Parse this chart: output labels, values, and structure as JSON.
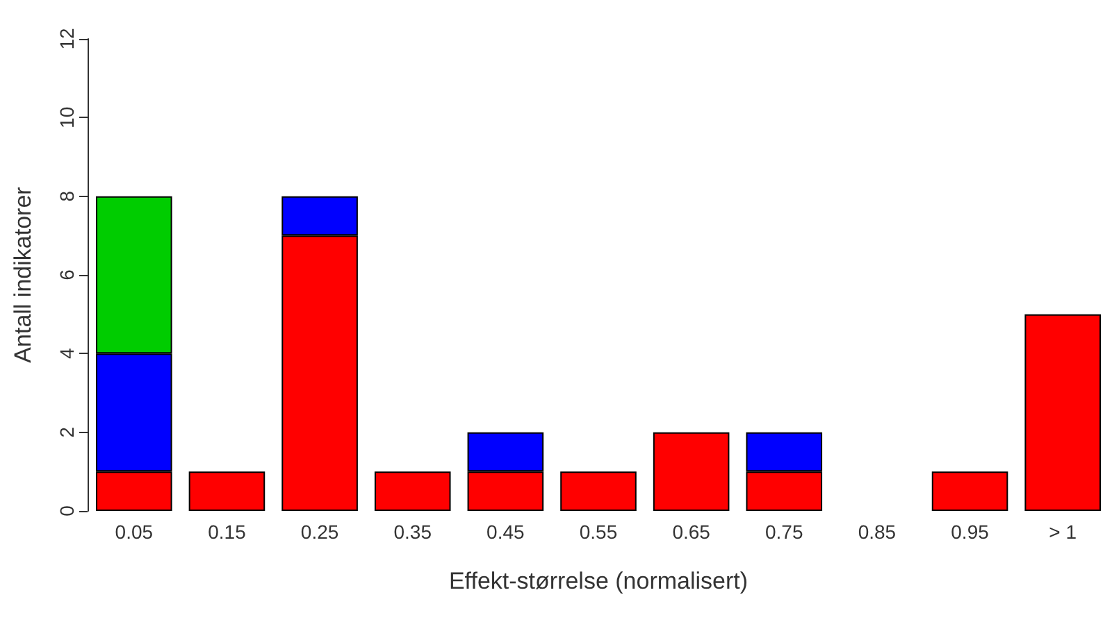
{
  "chart_data": {
    "type": "bar",
    "stacked": true,
    "xlabel": "Effekt-størrelse (normalisert)",
    "ylabel": "Antall indikatorer",
    "categories": [
      "0.05",
      "0.15",
      "0.25",
      "0.35",
      "0.45",
      "0.55",
      "0.65",
      "0.75",
      "0.85",
      "0.95",
      "> 1"
    ],
    "series": [
      {
        "color": "#ff0000",
        "values": [
          1,
          1,
          7,
          1,
          1,
          1,
          2,
          1,
          0,
          1,
          5
        ]
      },
      {
        "color": "#0000ff",
        "values": [
          3,
          0,
          1,
          0,
          1,
          0,
          0,
          1,
          0,
          0,
          0
        ]
      },
      {
        "color": "#00cc00",
        "values": [
          4,
          0,
          0,
          0,
          0,
          0,
          0,
          0,
          0,
          0,
          0
        ]
      }
    ],
    "ylim": [
      0,
      12
    ],
    "yticks": [
      0,
      2,
      4,
      6,
      8,
      10,
      12
    ],
    "grid": false
  }
}
